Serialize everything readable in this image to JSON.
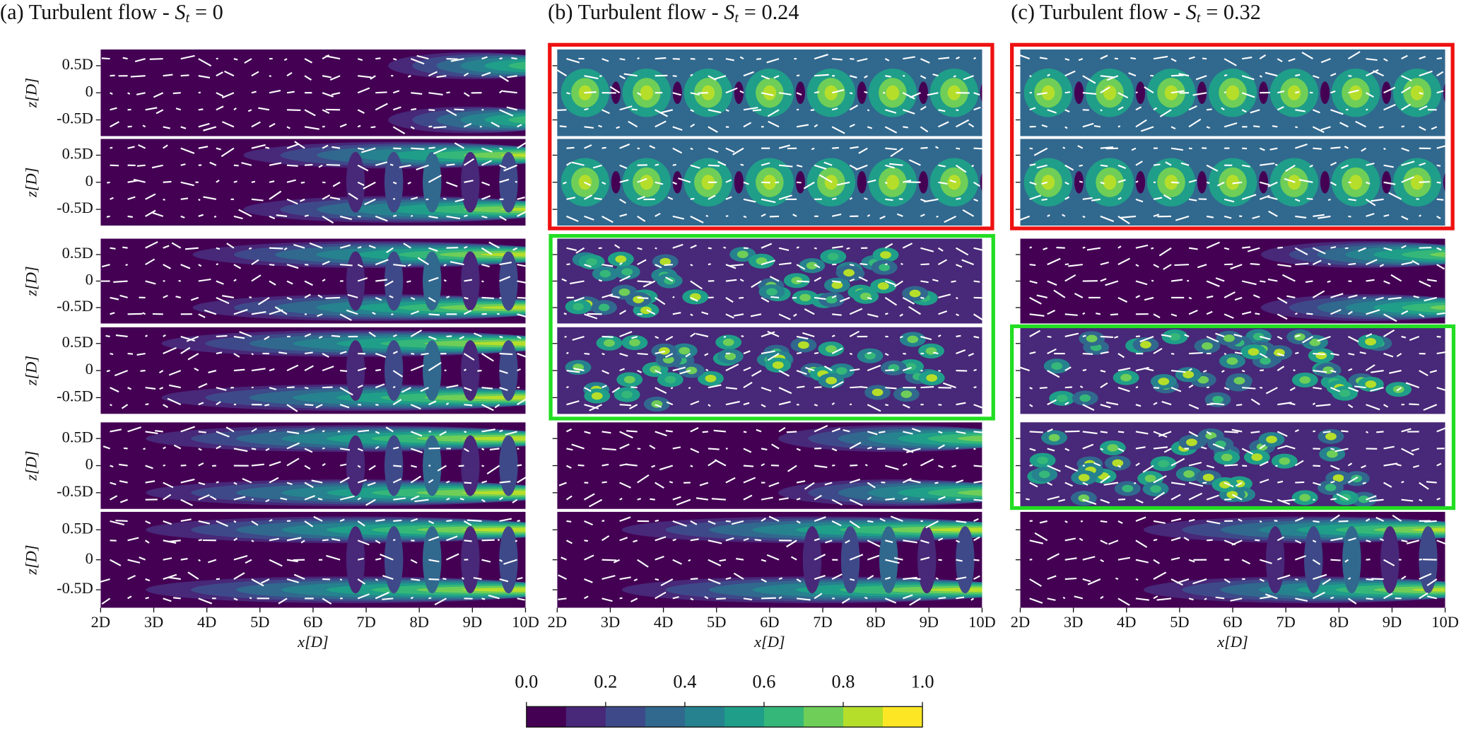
{
  "figure": {
    "panels": [
      {
        "prefix": "(a) Turbulent flow - ",
        "symbol": "S",
        "subscript": "t",
        "equals": "= 0"
      },
      {
        "prefix": "(b) Turbulent flow - ",
        "symbol": "S",
        "subscript": "t",
        "equals": "= 0.24"
      },
      {
        "prefix": "(c) Turbulent flow - ",
        "symbol": "S",
        "subscript": "t",
        "equals": "= 0.32"
      }
    ],
    "xlabel": "x[D]",
    "ylabel": "z[D]",
    "xlim": [
      2,
      10
    ],
    "xticks": [
      {
        "value": 2,
        "label": "2D"
      },
      {
        "value": 3,
        "label": "3D"
      },
      {
        "value": 4,
        "label": "4D"
      },
      {
        "value": 5,
        "label": "5D"
      },
      {
        "value": 6,
        "label": "6D"
      },
      {
        "value": 7,
        "label": "7D"
      },
      {
        "value": 8,
        "label": "8D"
      },
      {
        "value": 9,
        "label": "9D"
      },
      {
        "value": 10,
        "label": "10D"
      }
    ],
    "ylim": [
      -0.8,
      0.8
    ],
    "yticks": [
      {
        "value": 0.5,
        "label": "0.5D"
      },
      0,
      {
        "value": -0.5,
        "label": "-0.5D"
      }
    ],
    "colorbar": {
      "lim": [
        0,
        1
      ],
      "ticks": [
        {
          "value": 0,
          "label": "0.0"
        },
        0.2,
        0.4,
        0.6,
        0.8,
        {
          "value": 1,
          "label": "1.0"
        }
      ],
      "colors": [
        "#440154",
        "#482878",
        "#3e4989",
        "#31688e",
        "#26828e",
        "#1f9e89",
        "#35b779",
        "#6ece58",
        "#b5de2b",
        "#fde725"
      ]
    }
  }
}
